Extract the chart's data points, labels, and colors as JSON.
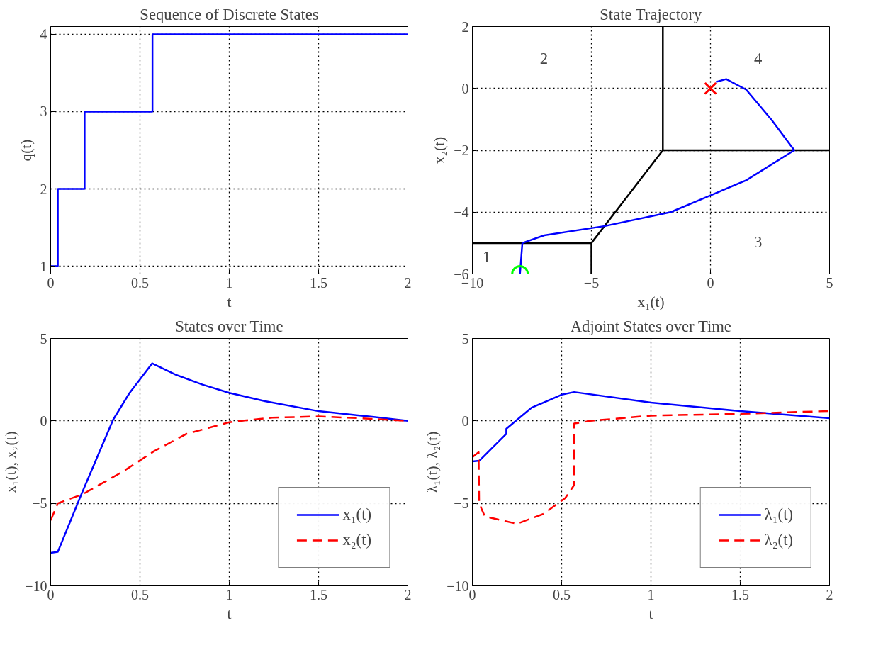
{
  "chart_data": [
    {
      "type": "step",
      "title": "Sequence of Discrete States",
      "xlabel": "t",
      "ylabel": "q(t)",
      "xlim": [
        0,
        2
      ],
      "ylim": [
        0.9,
        4.1
      ],
      "xticks": [
        0,
        0.5,
        1,
        1.5,
        2
      ],
      "yticks": [
        1,
        2,
        3,
        4
      ],
      "grid": true,
      "legend": false,
      "series": [
        {
          "color": "#0000ff",
          "x": [
            0,
            0.04,
            0.19,
            0.57,
            2
          ],
          "values": [
            1,
            2,
            3,
            4,
            4
          ]
        }
      ]
    },
    {
      "type": "line",
      "title": "State Trajectory",
      "xlabel": "x₁(t)",
      "ylabel": "x₂(t)",
      "xlim": [
        -10,
        5
      ],
      "ylim": [
        -6,
        2
      ],
      "xticks": [
        -10,
        -5,
        0,
        5
      ],
      "yticks": [
        -6,
        -4,
        -2,
        0,
        2
      ],
      "grid": true,
      "legend": false,
      "annotations": [
        "1",
        "2",
        "3",
        "4"
      ],
      "series": [
        {
          "color": "#000000",
          "x": [
            -2,
            -2,
            5
          ],
          "values": [
            2,
            -2,
            -2
          ]
        },
        {
          "color": "#000000",
          "x": [
            -2,
            -5,
            -10
          ],
          "values": [
            -2,
            -5,
            -5
          ]
        },
        {
          "color": "#000000",
          "x": [
            -5,
            -5
          ],
          "values": [
            -5,
            -6
          ]
        },
        {
          "color": "#0000ff",
          "x": [
            -8,
            -7.9,
            -6.98,
            -4.43,
            -1.67,
            -0.19,
            1.5,
            3.52,
            2.57,
            1.5,
            0.66,
            0.23
          ],
          "values": [
            -6,
            -5,
            -4.75,
            -4.45,
            -4,
            -3.52,
            -2.97,
            -2,
            -1.02,
            -0.04,
            0.3,
            0.21
          ]
        },
        {
          "type": "scatter",
          "marker": "circle",
          "color": "#00ff00",
          "x": [
            -8
          ],
          "values": [
            -6
          ]
        },
        {
          "type": "scatter",
          "marker": "cross",
          "color": "#ff0000",
          "x": [
            0
          ],
          "values": [
            0
          ]
        }
      ]
    },
    {
      "type": "line",
      "title": "States over Time",
      "xlabel": "t",
      "ylabel": "x₁(t), x₂(t)",
      "xlim": [
        0,
        2
      ],
      "ylim": [
        -10,
        5
      ],
      "xticks": [
        0,
        0.5,
        1,
        1.5,
        2
      ],
      "yticks": [
        -10,
        -5,
        0,
        5
      ],
      "grid": true,
      "legend": "bottom right",
      "series": [
        {
          "name": "x₁(t)",
          "color": "#0000ff",
          "line_style": "solid",
          "x": [
            0,
            0.04,
            0.17,
            0.35,
            0.44,
            0.568,
            0.7,
            0.85,
            1,
            1.2,
            1.5,
            1.8,
            2
          ],
          "values": [
            -8,
            -7.94,
            -4.5,
            0.08,
            1.67,
            3.49,
            2.8,
            2.2,
            1.7,
            1.2,
            0.59,
            0.25,
            0
          ]
        },
        {
          "name": "x₂(t)",
          "color": "#ff0000",
          "line_style": "dashed",
          "x": [
            0,
            0.04,
            0.18,
            0.4,
            0.58,
            0.76,
            1,
            1.24,
            1.5,
            1.74,
            2
          ],
          "values": [
            -6.03,
            -5,
            -4.44,
            -3.1,
            -1.83,
            -0.79,
            -0.08,
            0.2,
            0.27,
            0.16,
            0
          ]
        }
      ]
    },
    {
      "type": "line",
      "title": "Adjoint States over Time",
      "xlabel": "t",
      "ylabel": "λ₁(t), λ₂(t)",
      "xlim": [
        0,
        2
      ],
      "ylim": [
        -10,
        5
      ],
      "xticks": [
        0,
        0.5,
        1,
        1.5,
        2
      ],
      "yticks": [
        -10,
        -5,
        0,
        5
      ],
      "grid": true,
      "legend": "bottom right",
      "series": [
        {
          "name": "λ₁(t)",
          "color": "#0000ff",
          "line_style": "solid",
          "x": [
            0,
            0.04,
            0.19,
            0.19,
            0.33,
            0.5,
            0.57,
            1,
            1.5,
            2
          ],
          "values": [
            -2.46,
            -2.41,
            -0.79,
            -0.48,
            0.79,
            1.59,
            1.75,
            1.11,
            0.59,
            0.16
          ]
        },
        {
          "name": "λ₂(t)",
          "color": "#ff0000",
          "line_style": "dashed",
          "x": [
            0,
            0.035,
            0.038,
            0.07,
            0.25,
            0.4,
            0.52,
            0.57,
            0.57,
            0.66,
            1,
            1.5,
            2
          ],
          "values": [
            -2.2,
            -1.9,
            -5,
            -5.79,
            -6.24,
            -5.63,
            -4.68,
            -3.89,
            -0.16,
            0,
            0.32,
            0.43,
            0.6
          ]
        }
      ]
    }
  ]
}
